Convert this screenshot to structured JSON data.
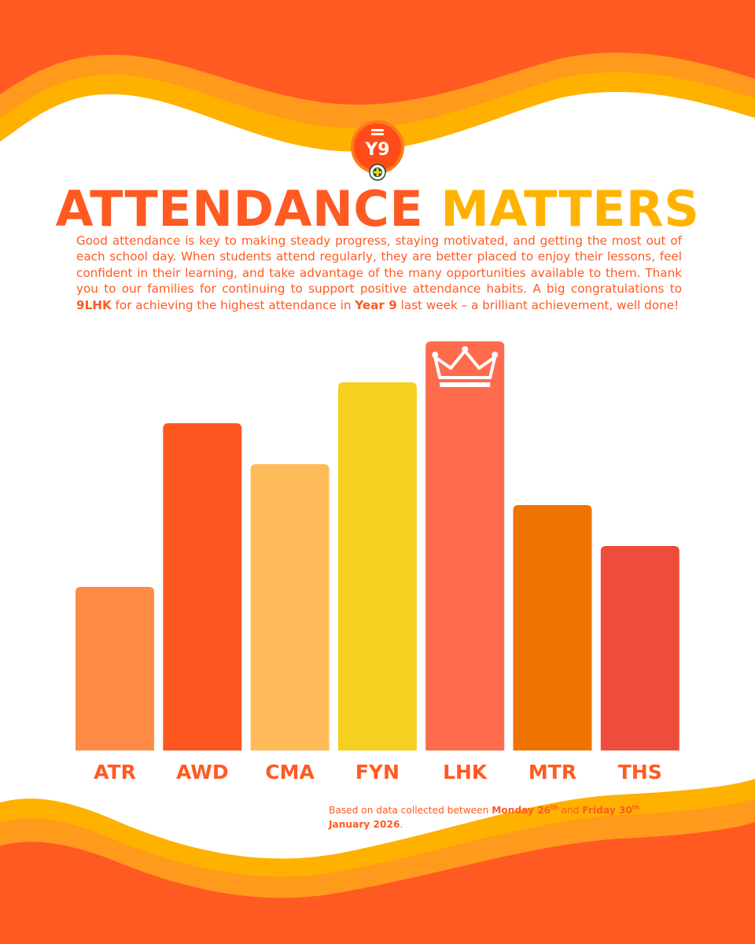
{
  "logo": {
    "text": "Y9"
  },
  "title": {
    "part1": "ATTENDANCE",
    "part2": "MATTERS"
  },
  "intro": {
    "text_a": "Good attendance is key to making steady progress, staying motivated, and getting the most out of each school day. When students attend regularly, they are better placed to enjoy their lessons, feel confident in their learning, and take advantage of the many opportunities available to them. Thank you to our families for continuing to support positive attendance habits. A big congratulations to ",
    "highlight_form": "9LHK",
    "text_b": " for achieving the highest attendance in ",
    "highlight_year": "Year 9",
    "text_c": " last week – a brilliant achievement, well done!"
  },
  "chart_data": {
    "type": "bar",
    "title": "",
    "xlabel": "",
    "ylabel": "",
    "categories": [
      "ATR",
      "AWD",
      "CMA",
      "FYN",
      "LHK",
      "MTR",
      "THS"
    ],
    "values": [
      208,
      416,
      364,
      468,
      520,
      312,
      260
    ],
    "ylim": [
      0,
      520
    ],
    "grid": false,
    "winner": "LHK",
    "winner_icon": "crown-icon",
    "colors": [
      "#ff8b47",
      "#ff5722",
      "#ffbb5a",
      "#f5d020",
      "#ff6b4d",
      "#f07300",
      "#ef4d3c"
    ]
  },
  "footnote": {
    "prefix": "Based on data collected between ",
    "start_day": "Monday 26",
    "start_suffix": "th",
    "middle": " and ",
    "end_day": "Friday 30",
    "end_suffix": "th",
    "end_month": "January 2026",
    "end": "."
  }
}
